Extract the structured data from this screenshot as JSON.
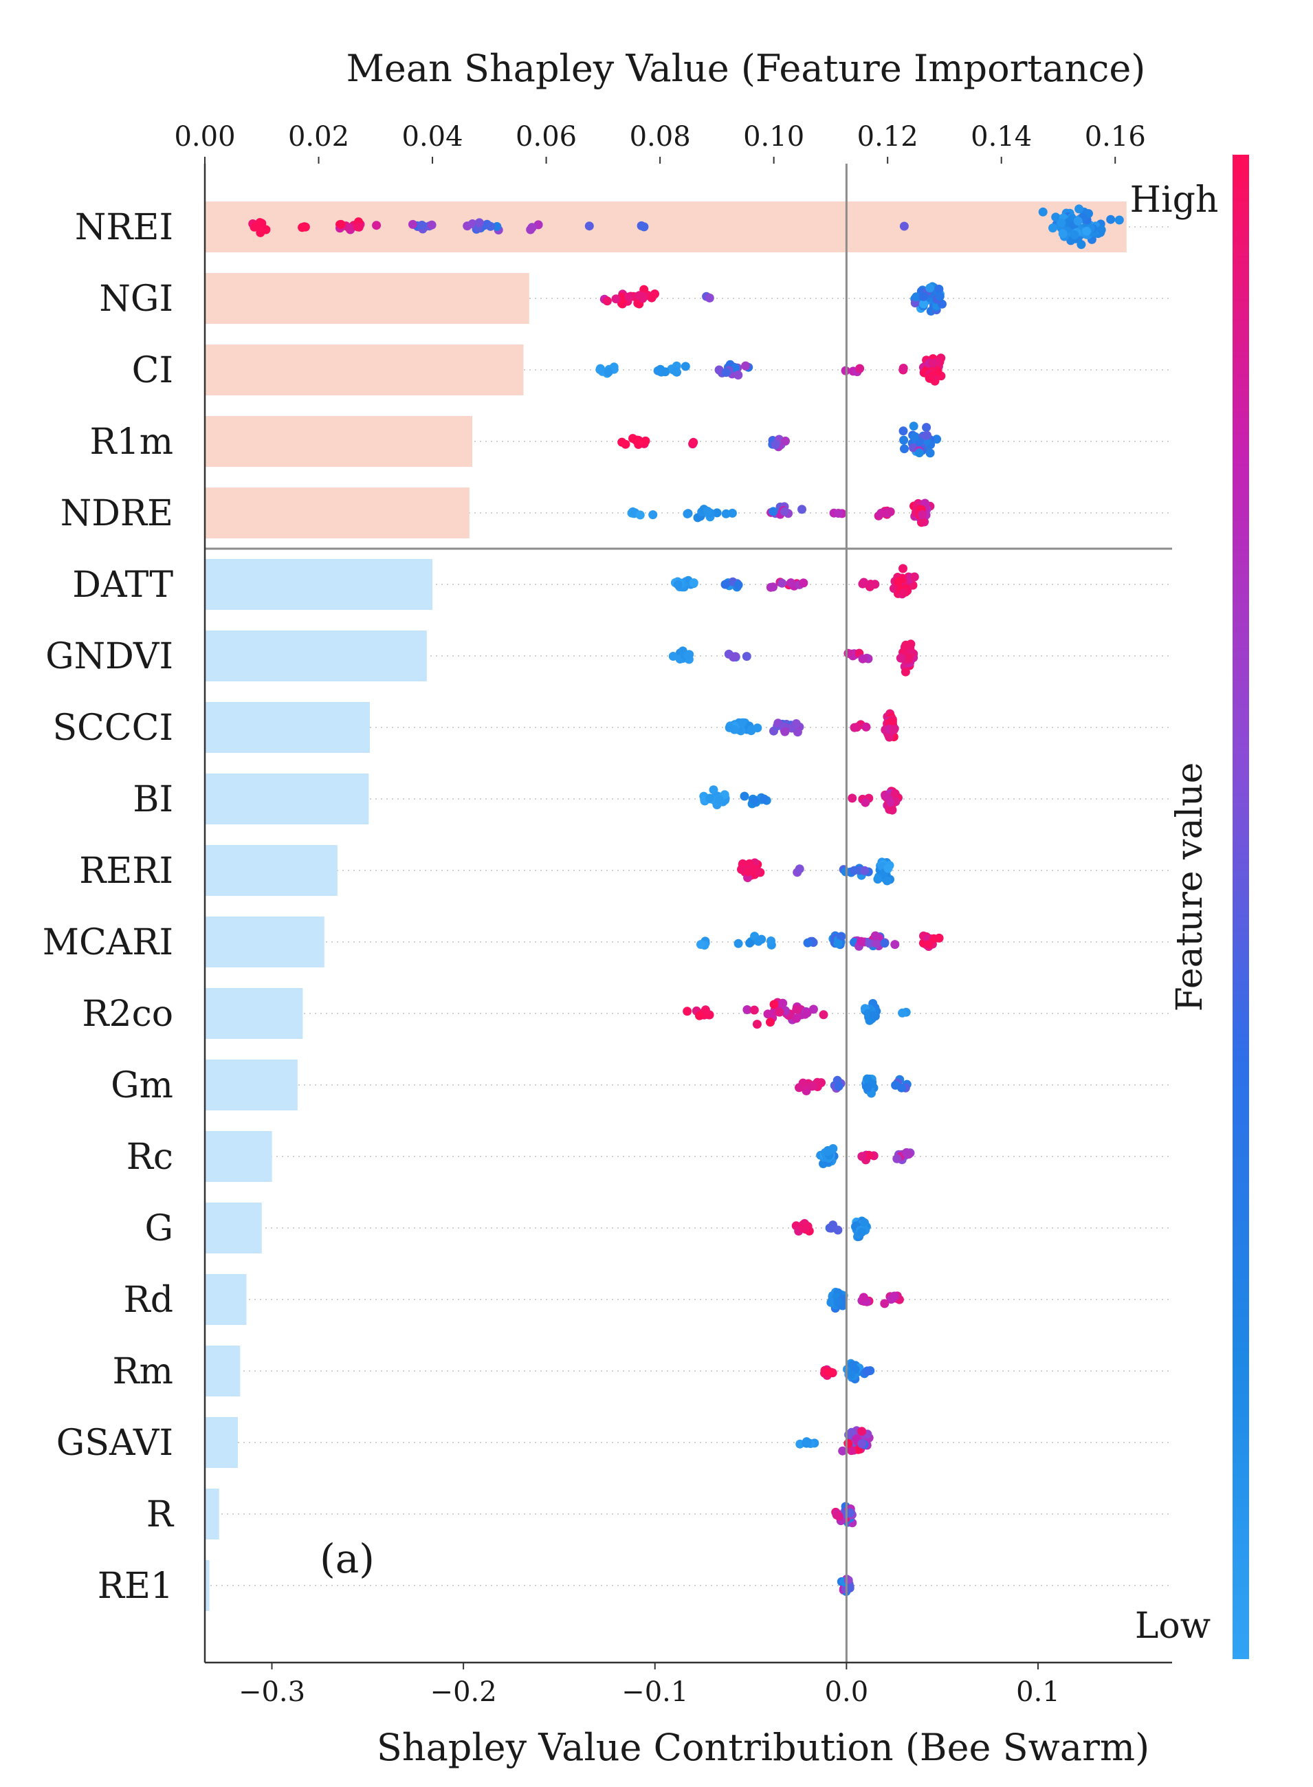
{
  "chart_data": {
    "type": "bar+beeswarm",
    "top_axis": {
      "title": "Mean Shapley Value (Feature Importance)",
      "range": [
        0,
        0.17
      ],
      "ticks": [
        "0.00",
        "0.02",
        "0.04",
        "0.06",
        "0.08",
        "0.10",
        "0.12",
        "0.14",
        "0.16"
      ],
      "tick_values": [
        0,
        0.02,
        0.04,
        0.06,
        0.08,
        0.1,
        0.12,
        0.14,
        0.16
      ]
    },
    "bottom_axis": {
      "title": "Shapley Value Contribution (Bee Swarm)",
      "range": [
        -0.335,
        0.17
      ],
      "ticks": [
        "−0.3",
        "−0.2",
        "−0.1",
        "0.0",
        "0.1"
      ],
      "tick_values": [
        -0.3,
        -0.2,
        -0.1,
        0.0,
        0.1
      ]
    },
    "features": [
      "NREI",
      "NGI",
      "CI",
      "R1m",
      "NDRE",
      "DATT",
      "GNDVI",
      "SCCCI",
      "BI",
      "RERI",
      "MCARI",
      "R2co",
      "Gm",
      "Rc",
      "G",
      "Rd",
      "Rm",
      "GSAVI",
      "R",
      "RE1"
    ],
    "mean_shap": [
      0.162,
      0.057,
      0.056,
      0.047,
      0.0465,
      0.04,
      0.039,
      0.029,
      0.0288,
      0.0233,
      0.021,
      0.0172,
      0.0163,
      0.0118,
      0.01,
      0.0073,
      0.0062,
      0.0058,
      0.0025,
      0.0008
    ],
    "top_group_size": 5,
    "bar_colors": {
      "top": "#f9d5ca",
      "rest": "#c4e5fb"
    },
    "colorbar": {
      "label": "Feature value",
      "high": "High",
      "low": "Low",
      "colors": [
        "#ff0d57",
        "#c522b3",
        "#8a4cd6",
        "#2e6fe8",
        "#1e88e5",
        "#31a3f5"
      ]
    },
    "swarm": [
      {
        "feature": "NREI",
        "clusters": [
          {
            "v": 0.121,
            "w": 0.02,
            "n": 80,
            "c": 0.82,
            "s": 0.12
          },
          {
            "v": -0.305,
            "w": 0.01,
            "n": 8,
            "c": 0.0,
            "s": 0.05
          },
          {
            "v": -0.285,
            "w": 0.006,
            "n": 3,
            "c": 0.0,
            "s": 0.03
          },
          {
            "v": -0.258,
            "w": 0.014,
            "n": 14,
            "c": 0.05,
            "s": 0.08
          },
          {
            "v": -0.22,
            "w": 0.01,
            "n": 8,
            "c": 0.4,
            "s": 0.15
          },
          {
            "v": -0.19,
            "w": 0.014,
            "n": 12,
            "c": 0.45,
            "s": 0.15
          },
          {
            "v": -0.165,
            "w": 0.008,
            "n": 4,
            "c": 0.4,
            "s": 0.15
          },
          {
            "v": -0.135,
            "w": 0.002,
            "n": 1,
            "c": 0.5,
            "s": 0.05
          },
          {
            "v": -0.107,
            "w": 0.003,
            "n": 2,
            "c": 0.5,
            "s": 0.05
          },
          {
            "v": 0.03,
            "w": 0.001,
            "n": 1,
            "c": 0.5,
            "s": 0.05
          }
        ]
      },
      {
        "feature": "NGI",
        "clusters": [
          {
            "v": 0.043,
            "w": 0.01,
            "n": 50,
            "c": 0.7,
            "s": 0.2
          },
          {
            "v": -0.115,
            "w": 0.015,
            "n": 22,
            "c": 0.05,
            "s": 0.08
          },
          {
            "v": -0.07,
            "w": 0.005,
            "n": 2,
            "c": 0.45,
            "s": 0.1
          }
        ]
      },
      {
        "feature": "CI",
        "clusters": [
          {
            "v": 0.045,
            "w": 0.006,
            "n": 40,
            "c": 0.08,
            "s": 0.08
          },
          {
            "v": 0.03,
            "w": 0.003,
            "n": 2,
            "c": 0.1,
            "s": 0.05
          },
          {
            "v": 0.005,
            "w": 0.006,
            "n": 4,
            "c": 0.15,
            "s": 0.08
          },
          {
            "v": -0.125,
            "w": 0.008,
            "n": 8,
            "c": 0.95,
            "s": 0.04
          },
          {
            "v": -0.092,
            "w": 0.008,
            "n": 10,
            "c": 0.88,
            "s": 0.06
          },
          {
            "v": -0.06,
            "w": 0.014,
            "n": 18,
            "c": 0.5,
            "s": 0.15
          }
        ]
      },
      {
        "feature": "R1m",
        "clusters": [
          {
            "v": 0.038,
            "w": 0.01,
            "n": 50,
            "c": 0.7,
            "s": 0.2
          },
          {
            "v": -0.11,
            "w": 0.008,
            "n": 12,
            "c": 0.0,
            "s": 0.05
          },
          {
            "v": -0.08,
            "w": 0.002,
            "n": 2,
            "c": 0.05,
            "s": 0.05
          },
          {
            "v": -0.035,
            "w": 0.012,
            "n": 10,
            "c": 0.45,
            "s": 0.1
          }
        ]
      },
      {
        "feature": "NDRE",
        "clusters": [
          {
            "v": 0.04,
            "w": 0.005,
            "n": 35,
            "c": 0.15,
            "s": 0.1
          },
          {
            "v": 0.02,
            "w": 0.007,
            "n": 8,
            "c": 0.15,
            "s": 0.1
          },
          {
            "v": -0.005,
            "w": 0.008,
            "n": 3,
            "c": 0.2,
            "s": 0.1
          },
          {
            "v": -0.11,
            "w": 0.008,
            "n": 6,
            "c": 0.95,
            "s": 0.04
          },
          {
            "v": -0.075,
            "w": 0.015,
            "n": 14,
            "c": 0.85,
            "s": 0.08
          },
          {
            "v": -0.035,
            "w": 0.012,
            "n": 10,
            "c": 0.35,
            "s": 0.15
          }
        ]
      },
      {
        "feature": "DATT",
        "clusters": [
          {
            "v": 0.03,
            "w": 0.006,
            "n": 40,
            "c": 0.08,
            "s": 0.08
          },
          {
            "v": 0.012,
            "w": 0.006,
            "n": 5,
            "c": 0.1,
            "s": 0.05
          },
          {
            "v": -0.085,
            "w": 0.01,
            "n": 16,
            "c": 0.92,
            "s": 0.06
          },
          {
            "v": -0.06,
            "w": 0.008,
            "n": 8,
            "c": 0.7,
            "s": 0.15
          },
          {
            "v": -0.03,
            "w": 0.012,
            "n": 10,
            "c": 0.2,
            "s": 0.1
          }
        ]
      },
      {
        "feature": "GNDVI",
        "clusters": [
          {
            "v": 0.032,
            "w": 0.005,
            "n": 40,
            "c": 0.1,
            "s": 0.08
          },
          {
            "v": 0.008,
            "w": 0.01,
            "n": 10,
            "c": 0.2,
            "s": 0.1
          },
          {
            "v": -0.085,
            "w": 0.008,
            "n": 12,
            "c": 0.92,
            "s": 0.06
          },
          {
            "v": -0.06,
            "w": 0.008,
            "n": 6,
            "c": 0.5,
            "s": 0.15
          }
        ]
      },
      {
        "feature": "SCCCI",
        "clusters": [
          {
            "v": 0.023,
            "w": 0.004,
            "n": 40,
            "c": 0.08,
            "s": 0.08
          },
          {
            "v": 0.008,
            "w": 0.005,
            "n": 4,
            "c": 0.1,
            "s": 0.05
          },
          {
            "v": -0.055,
            "w": 0.01,
            "n": 20,
            "c": 0.92,
            "s": 0.06
          },
          {
            "v": -0.03,
            "w": 0.012,
            "n": 16,
            "c": 0.4,
            "s": 0.15
          }
        ]
      },
      {
        "feature": "BI",
        "clusters": [
          {
            "v": 0.023,
            "w": 0.004,
            "n": 36,
            "c": 0.1,
            "s": 0.08
          },
          {
            "v": 0.008,
            "w": 0.006,
            "n": 5,
            "c": 0.15,
            "s": 0.08
          },
          {
            "v": -0.068,
            "w": 0.01,
            "n": 20,
            "c": 0.95,
            "s": 0.04
          },
          {
            "v": -0.045,
            "w": 0.008,
            "n": 10,
            "c": 0.8,
            "s": 0.1
          }
        ]
      },
      {
        "feature": "RERI",
        "clusters": [
          {
            "v": 0.02,
            "w": 0.004,
            "n": 36,
            "c": 0.9,
            "s": 0.08
          },
          {
            "v": 0.005,
            "w": 0.008,
            "n": 10,
            "c": 0.6,
            "s": 0.15
          },
          {
            "v": -0.05,
            "w": 0.008,
            "n": 20,
            "c": 0.05,
            "s": 0.06
          },
          {
            "v": -0.025,
            "w": 0.002,
            "n": 2,
            "c": 0.4,
            "s": 0.05
          }
        ]
      },
      {
        "feature": "MCARI",
        "clusters": [
          {
            "v": 0.043,
            "w": 0.006,
            "n": 20,
            "c": 0.05,
            "s": 0.06
          },
          {
            "v": -0.005,
            "w": 0.004,
            "n": 20,
            "c": 0.7,
            "s": 0.2
          },
          {
            "v": 0.012,
            "w": 0.012,
            "n": 18,
            "c": 0.4,
            "s": 0.25
          },
          {
            "v": -0.075,
            "w": 0.003,
            "n": 4,
            "c": 0.95,
            "s": 0.04
          },
          {
            "v": -0.045,
            "w": 0.012,
            "n": 8,
            "c": 0.88,
            "s": 0.05
          },
          {
            "v": -0.018,
            "w": 0.004,
            "n": 4,
            "c": 0.6,
            "s": 0.15
          }
        ]
      },
      {
        "feature": "R2co",
        "clusters": [
          {
            "v": 0.013,
            "w": 0.004,
            "n": 30,
            "c": 0.8,
            "s": 0.1
          },
          {
            "v": 0.03,
            "w": 0.002,
            "n": 2,
            "c": 0.9,
            "s": 0.05
          },
          {
            "v": -0.075,
            "w": 0.008,
            "n": 10,
            "c": 0.05,
            "s": 0.06
          },
          {
            "v": -0.03,
            "w": 0.022,
            "n": 30,
            "c": 0.15,
            "s": 0.12
          }
        ]
      },
      {
        "feature": "Gm",
        "clusters": [
          {
            "v": 0.012,
            "w": 0.003,
            "n": 30,
            "c": 0.85,
            "s": 0.1
          },
          {
            "v": 0.028,
            "w": 0.006,
            "n": 6,
            "c": 0.6,
            "s": 0.15
          },
          {
            "v": -0.02,
            "w": 0.008,
            "n": 14,
            "c": 0.1,
            "s": 0.06
          },
          {
            "v": -0.005,
            "w": 0.006,
            "n": 6,
            "c": 0.4,
            "s": 0.15
          }
        ]
      },
      {
        "feature": "Rc",
        "clusters": [
          {
            "v": -0.01,
            "w": 0.004,
            "n": 30,
            "c": 0.85,
            "s": 0.1
          },
          {
            "v": 0.01,
            "w": 0.004,
            "n": 6,
            "c": 0.1,
            "s": 0.06
          },
          {
            "v": 0.03,
            "w": 0.008,
            "n": 10,
            "c": 0.35,
            "s": 0.15
          }
        ]
      },
      {
        "feature": "G",
        "clusters": [
          {
            "v": 0.007,
            "w": 0.004,
            "n": 26,
            "c": 0.85,
            "s": 0.1
          },
          {
            "v": -0.022,
            "w": 0.005,
            "n": 12,
            "c": 0.05,
            "s": 0.06
          },
          {
            "v": -0.005,
            "w": 0.004,
            "n": 4,
            "c": 0.5,
            "s": 0.15
          }
        ]
      },
      {
        "feature": "Rd",
        "clusters": [
          {
            "v": -0.005,
            "w": 0.005,
            "n": 30,
            "c": 0.8,
            "s": 0.1
          },
          {
            "v": 0.01,
            "w": 0.004,
            "n": 6,
            "c": 0.15,
            "s": 0.1
          },
          {
            "v": 0.025,
            "w": 0.006,
            "n": 8,
            "c": 0.2,
            "s": 0.1
          }
        ]
      },
      {
        "feature": "Rm",
        "clusters": [
          {
            "v": 0.004,
            "w": 0.004,
            "n": 24,
            "c": 0.8,
            "s": 0.1
          },
          {
            "v": -0.01,
            "w": 0.003,
            "n": 8,
            "c": 0.05,
            "s": 0.06
          },
          {
            "v": 0.013,
            "w": 0.004,
            "n": 4,
            "c": 0.7,
            "s": 0.1
          }
        ]
      },
      {
        "feature": "GSAVI",
        "clusters": [
          {
            "v": 0.006,
            "w": 0.008,
            "n": 40,
            "c": 0.3,
            "s": 0.25
          },
          {
            "v": -0.02,
            "w": 0.006,
            "n": 6,
            "c": 0.9,
            "s": 0.06
          }
        ]
      },
      {
        "feature": "R",
        "clusters": [
          {
            "v": 0.001,
            "w": 0.005,
            "n": 24,
            "c": 0.4,
            "s": 0.25
          },
          {
            "v": -0.005,
            "w": 0.002,
            "n": 4,
            "c": 0.1,
            "s": 0.06
          }
        ]
      },
      {
        "feature": "RE1",
        "clusters": [
          {
            "v": 0.0,
            "w": 0.003,
            "n": 18,
            "c": 0.5,
            "s": 0.25
          }
        ]
      }
    ],
    "annotation": "(a)"
  }
}
